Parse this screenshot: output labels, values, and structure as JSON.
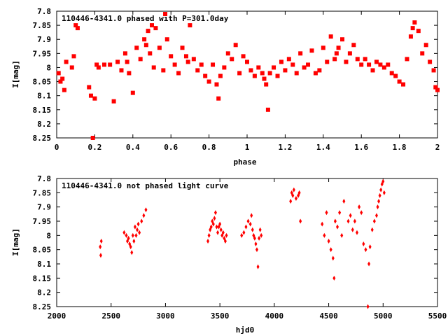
{
  "chart_data": [
    {
      "type": "scatter",
      "title": "110446-4341.0 phased with P=301.0day",
      "xlabel": "phase",
      "ylabel": "I[mag]",
      "xlim": [
        0,
        2
      ],
      "ylim": [
        8.25,
        7.8
      ],
      "y_inverted": true,
      "xticks": [
        "0",
        "0.2",
        "0.4",
        "0.6",
        "0.8",
        "1",
        "1.2",
        "1.4",
        "1.6",
        "1.8",
        "2"
      ],
      "yticks": [
        "7.8",
        "7.85",
        "7.9",
        "7.95",
        "8",
        "8.05",
        "8.1",
        "8.15",
        "8.2",
        "8.25"
      ],
      "grid": false,
      "marker": "filled square",
      "color": "#ff0000",
      "series": [
        {
          "x": [
            0.01,
            0.02,
            0.03,
            0.04,
            0.05,
            0.08,
            0.09,
            0.1,
            0.11,
            0.17,
            0.18,
            0.19,
            0.2,
            0.21,
            0.22,
            0.25,
            0.28,
            0.3,
            0.32,
            0.34,
            0.36,
            0.37,
            0.38,
            0.4,
            0.42,
            0.44,
            0.46,
            0.47,
            0.48,
            0.49,
            0.5,
            0.51,
            0.52,
            0.54,
            0.56,
            0.57,
            0.58,
            0.6,
            0.62,
            0.64,
            0.66,
            0.68,
            0.69,
            0.7,
            0.72,
            0.74,
            0.76,
            0.78,
            0.8,
            0.82,
            0.84,
            0.85,
            0.86,
            0.88,
            0.9,
            0.92,
            0.94,
            0.96,
            0.98,
            1.0,
            1.02,
            1.04,
            1.06,
            1.08,
            1.09,
            1.1,
            1.11,
            1.12,
            1.14,
            1.16,
            1.18,
            1.2,
            1.22,
            1.24,
            1.26,
            1.28,
            1.3,
            1.32,
            1.34,
            1.36,
            1.38,
            1.4,
            1.42,
            1.44,
            1.46,
            1.47,
            1.48,
            1.5,
            1.52,
            1.54,
            1.56,
            1.58,
            1.6,
            1.62,
            1.64,
            1.66,
            1.68,
            1.7,
            1.72,
            1.74,
            1.76,
            1.78,
            1.8,
            1.82,
            1.84,
            1.86,
            1.87,
            1.88,
            1.9,
            1.92,
            1.94,
            1.96,
            1.98,
            1.99,
            2.0
          ],
          "y": [
            8.02,
            8.05,
            8.04,
            8.08,
            7.98,
            8.0,
            7.96,
            7.85,
            7.86,
            8.07,
            8.1,
            8.25,
            8.11,
            7.99,
            8.0,
            7.99,
            7.99,
            8.12,
            7.98,
            8.01,
            7.95,
            7.98,
            8.02,
            8.09,
            7.93,
            7.97,
            7.9,
            7.92,
            7.87,
            7.95,
            7.85,
            8.0,
            7.86,
            7.93,
            8.01,
            7.81,
            7.9,
            7.96,
            7.99,
            8.02,
            7.93,
            7.96,
            7.98,
            7.85,
            7.97,
            8.01,
            7.99,
            8.03,
            8.05,
            7.99,
            8.06,
            8.11,
            8.03,
            8.0,
            7.95,
            7.97,
            7.92,
            8.02,
            7.96,
            7.98,
            8.01,
            8.03,
            8.0,
            8.02,
            8.04,
            8.06,
            8.15,
            8.02,
            8.0,
            8.03,
            7.98,
            8.01,
            7.97,
            7.99,
            8.02,
            7.95,
            8.0,
            7.99,
            7.94,
            8.02,
            8.01,
            7.93,
            7.98,
            7.89,
            7.97,
            7.95,
            7.93,
            7.9,
            7.98,
            7.95,
            7.92,
            7.97,
            7.99,
            7.97,
            7.99,
            8.01,
            7.98,
            7.99,
            8.0,
            7.99,
            8.02,
            8.03,
            8.05,
            8.06,
            7.97,
            7.89,
            7.86,
            7.84,
            7.87,
            7.95,
            7.92,
            7.98,
            8.01,
            8.07,
            8.08
          ]
        }
      ]
    },
    {
      "type": "scatter",
      "title": "110446-4341.0 not phased light curve",
      "xlabel": "hjd0",
      "ylabel": "I[mag]",
      "xlim": [
        2000,
        5500
      ],
      "ylim": [
        8.25,
        7.8
      ],
      "y_inverted": true,
      "xticks": [
        "2000",
        "2500",
        "3000",
        "3500",
        "4000",
        "4500",
        "5000",
        "5500"
      ],
      "yticks": [
        "7.8",
        "7.85",
        "7.9",
        "7.95",
        "8",
        "8.05",
        "8.1",
        "8.15",
        "8.2",
        "8.25"
      ],
      "grid": false,
      "marker": "filled diamond",
      "color": "#ff0000",
      "series": [
        {
          "x": [
            2400,
            2405,
            2410,
            2620,
            2640,
            2650,
            2660,
            2670,
            2680,
            2690,
            2700,
            2710,
            2720,
            2730,
            2740,
            2750,
            2760,
            2780,
            2800,
            2820,
            3390,
            3400,
            3410,
            3420,
            3430,
            3440,
            3450,
            3460,
            3470,
            3480,
            3490,
            3500,
            3510,
            3520,
            3530,
            3540,
            3550,
            3560,
            3700,
            3720,
            3740,
            3760,
            3780,
            3790,
            3800,
            3810,
            3820,
            3830,
            3840,
            3850,
            3860,
            3870,
            3880,
            4150,
            4160,
            4170,
            4180,
            4200,
            4220,
            4230,
            4240,
            4440,
            4460,
            4480,
            4500,
            4520,
            4540,
            4550,
            4560,
            4580,
            4600,
            4620,
            4640,
            4680,
            4700,
            4720,
            4740,
            4760,
            4780,
            4800,
            4820,
            4840,
            4860,
            4870,
            4880,
            4900,
            4920,
            4940,
            4950,
            4960,
            4970,
            4980,
            4990,
            5000,
            5010
          ],
          "y": [
            8.04,
            8.07,
            8.02,
            7.99,
            8.0,
            8.02,
            8.01,
            8.03,
            8.04,
            8.06,
            8.0,
            8.02,
            7.97,
            8.0,
            7.98,
            7.96,
            7.99,
            7.95,
            7.93,
            7.91,
            8.02,
            8.0,
            7.98,
            7.97,
            7.95,
            7.96,
            7.94,
            7.92,
            7.97,
            7.99,
            7.97,
            7.96,
            7.98,
            8.0,
            7.99,
            8.01,
            8.02,
            8.0,
            8.0,
            7.99,
            7.97,
            7.95,
            7.96,
            7.93,
            7.98,
            8.0,
            8.01,
            8.03,
            8.05,
            8.11,
            8.01,
            7.98,
            8.0,
            7.88,
            7.85,
            7.86,
            7.84,
            7.87,
            7.86,
            7.85,
            7.95,
            7.96,
            8.0,
            7.92,
            8.02,
            8.05,
            8.08,
            8.15,
            7.95,
            7.97,
            7.92,
            8.0,
            7.88,
            7.95,
            7.93,
            7.98,
            7.95,
            7.99,
            7.9,
            7.92,
            8.03,
            8.05,
            8.25,
            8.1,
            8.04,
            7.98,
            7.95,
            7.93,
            7.9,
            7.88,
            7.86,
            7.84,
            7.82,
            7.81,
            7.85
          ]
        }
      ]
    }
  ]
}
